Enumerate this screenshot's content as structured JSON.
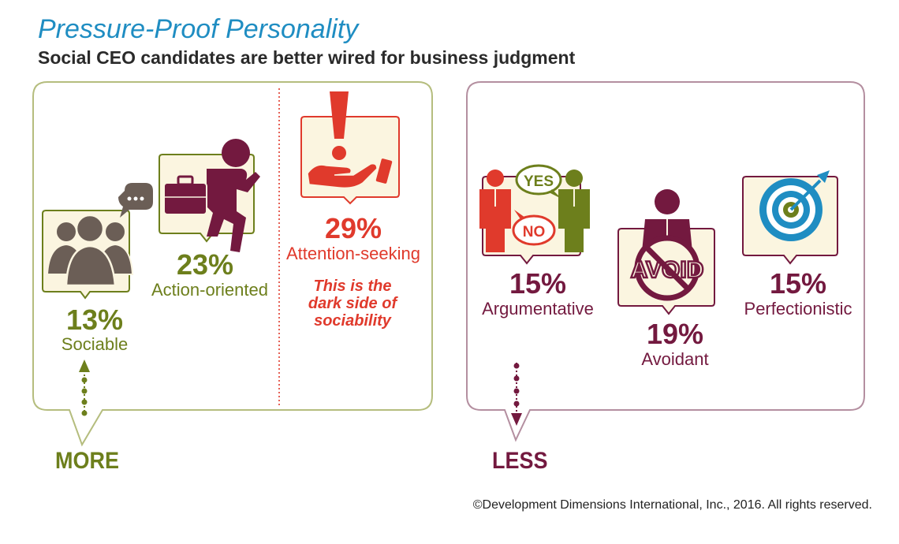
{
  "title": "Pressure-Proof Personality",
  "subtitle": "Social CEO candidates are better wired for business judgment",
  "more_panel": {
    "label": "MORE",
    "traits": [
      {
        "percent": "13%",
        "label": "Sociable",
        "icon": "group-chat-icon"
      },
      {
        "percent": "23%",
        "label": "Action-oriented",
        "icon": "running-businessman-icon"
      },
      {
        "percent": "29%",
        "label": "Attention-seeking",
        "icon": "exclamation-hand-icon"
      }
    ],
    "note": "This is the dark side of sociability"
  },
  "less_panel": {
    "label": "LESS",
    "traits": [
      {
        "percent": "15%",
        "label": "Argumentative",
        "icon": "yes-no-debate-icon"
      },
      {
        "percent": "19%",
        "label": "Avoidant",
        "icon": "avoid-sign-icon",
        "icon_text": "AVOID"
      },
      {
        "percent": "15%",
        "label": "Perfectionistic",
        "icon": "target-icon"
      }
    ]
  },
  "debate_icon": {
    "yes": "YES",
    "no": "NO"
  },
  "copyright": "©Development Dimensions International, Inc., 2016. All rights reserved.",
  "colors": {
    "olive": "#6d7f1c",
    "plum": "#73193f",
    "red": "#e03a2c",
    "blue": "#1f8dc2",
    "cream": "#fbf5e0",
    "gray": "#6b5e56"
  }
}
